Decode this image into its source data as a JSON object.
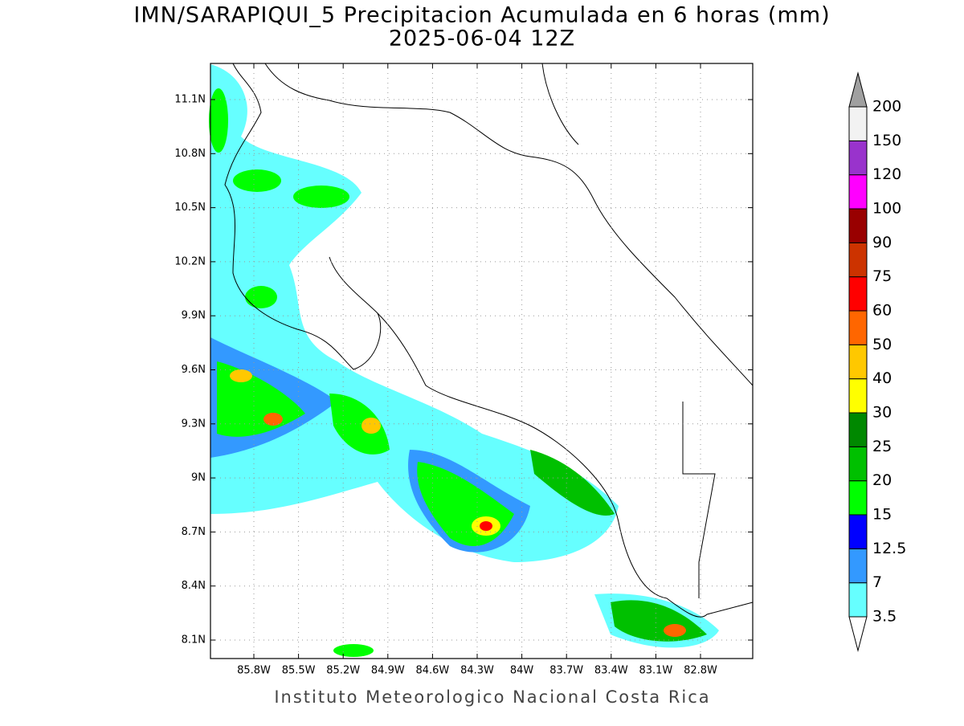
{
  "title": "IMN/SARAPIQUI_5 Precipitacion Acumulada en 6 horas (mm)",
  "subtitle": "2025-06-04 12Z",
  "map": {
    "lat_labels": [
      "11.1N",
      "10.8N",
      "10.5N",
      "10.2N",
      "9.9N",
      "9.6N",
      "9.3N",
      "9N",
      "8.7N",
      "8.4N",
      "8.1N"
    ],
    "lon_labels": [
      "85.8W",
      "85.5W",
      "85.2W",
      "84.9W",
      "84.6W",
      "84.3W",
      "84W",
      "83.7W",
      "83.4W",
      "83.1W",
      "82.8W"
    ]
  },
  "colorbar": {
    "labels": [
      3.5,
      7,
      12.5,
      15,
      20,
      25,
      30,
      40,
      50,
      60,
      75,
      90,
      100,
      120,
      150,
      200
    ],
    "colors": [
      "#ffffff",
      "#66ffff",
      "#3399ff",
      "#0000ff",
      "#00ff00",
      "#00c000",
      "#008800",
      "#ffff00",
      "#ffc800",
      "#ff6600",
      "#ff0000",
      "#cc3300",
      "#990000",
      "#ff00ff",
      "#9933cc",
      "#f2f2f2",
      "#a0a0a0"
    ]
  },
  "footer": "Instituto Meteorologico Nacional Costa Rica"
}
